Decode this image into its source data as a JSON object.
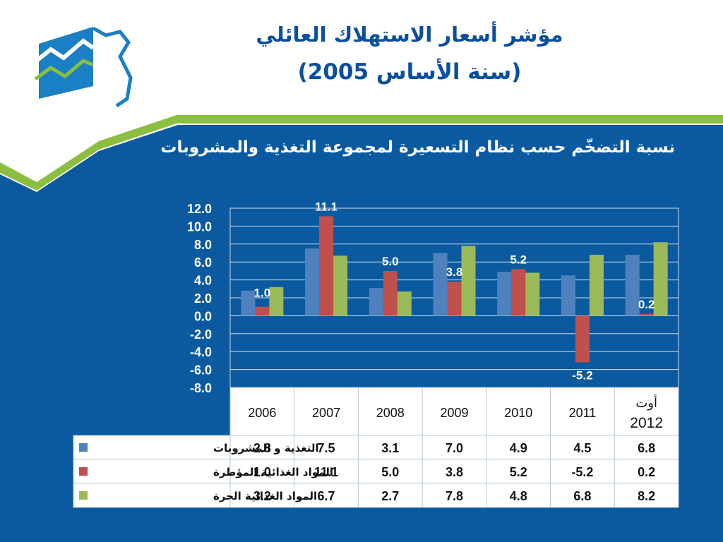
{
  "header": {
    "title_line1": "مؤشر أسعار الاستهلاك العائلي",
    "title_line2": "(سنة الأساس 2005)"
  },
  "colors": {
    "background_blue": "#0b5aa0",
    "green_band": "#8cbf3f",
    "title_blue": "#0a4f9c",
    "series_blue": "#4f81bd",
    "series_red": "#c0504d",
    "series_green": "#9bbb59"
  },
  "chart_data": {
    "type": "bar",
    "title": "نسبة التضخّم حسب نظام التسعيرة لمجموعة التغذية والمشروبات",
    "categories": [
      "2006",
      "2007",
      "2008",
      "2009",
      "2010",
      "2011",
      "أوت 2012"
    ],
    "category_lines": [
      [
        "2006"
      ],
      [
        "2007"
      ],
      [
        "2008"
      ],
      [
        "2009"
      ],
      [
        "2010"
      ],
      [
        "2011"
      ],
      [
        "أوت",
        "2012"
      ]
    ],
    "series": [
      {
        "name": "التغذية و المشروبات",
        "color": "#4f81bd",
        "values": [
          2.8,
          7.5,
          3.1,
          7.0,
          4.9,
          4.5,
          6.8
        ]
      },
      {
        "name": "المواد الغذائية المؤطرة",
        "color": "#c0504d",
        "values": [
          1.0,
          11.1,
          5.0,
          3.8,
          5.2,
          -5.2,
          0.2
        ]
      },
      {
        "name": "المواد الغذائية الحرة",
        "color": "#9bbb59",
        "values": [
          3.2,
          6.7,
          2.7,
          7.8,
          4.8,
          6.8,
          8.2
        ]
      }
    ],
    "table_values": [
      [
        "2.8",
        "7.5",
        "3.1",
        "7.0",
        "4.9",
        "4.5",
        "6.8"
      ],
      [
        "1.0",
        "11.1",
        "5.0",
        "3.8",
        "5.2",
        "-5.2",
        "0.2"
      ],
      [
        "3.2",
        "6.7",
        "2.7",
        "7.8",
        "4.8",
        "6.8",
        "8.2"
      ]
    ],
    "data_labels": [
      {
        "series": 1,
        "index": 0,
        "text": "1.0"
      },
      {
        "series": 1,
        "index": 1,
        "text": "11.1"
      },
      {
        "series": 1,
        "index": 2,
        "text": "5.0"
      },
      {
        "series": 1,
        "index": 3,
        "text": "3.8"
      },
      {
        "series": 1,
        "index": 4,
        "text": "5.2"
      },
      {
        "series": 1,
        "index": 5,
        "text": "-5.2"
      },
      {
        "series": 1,
        "index": 6,
        "text": "0.2"
      }
    ],
    "ylim": [
      -8,
      12
    ],
    "yticks": [
      "12.0",
      "10.0",
      "8.0",
      "6.0",
      "4.0",
      "2.0",
      "0.0",
      "-2.0",
      "-4.0",
      "-6.0",
      "-8.0"
    ],
    "ytick_values": [
      12,
      10,
      8,
      6,
      4,
      2,
      0,
      -2,
      -4,
      -6,
      -8
    ],
    "grid": true,
    "legend": "data-table-left"
  }
}
